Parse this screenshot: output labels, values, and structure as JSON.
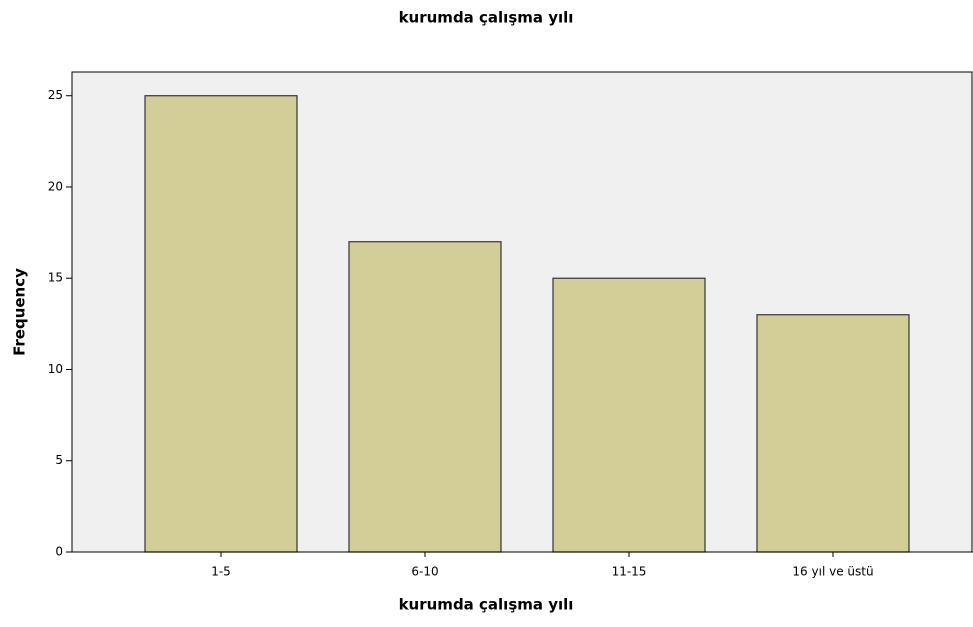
{
  "chart_data": {
    "type": "bar",
    "title": "kurumda çalışma yılı",
    "x_label": "kurumda çalışma yılı",
    "y_label": "Frequency",
    "categories": [
      "1-5",
      "6-10",
      "11-15",
      "16 yıl ve üstü"
    ],
    "values": [
      25,
      17,
      15,
      13
    ],
    "color": "#d3ce97",
    "ylim": [
      0,
      26.3
    ],
    "yticks": [
      0,
      5,
      10,
      15,
      20,
      25
    ]
  }
}
